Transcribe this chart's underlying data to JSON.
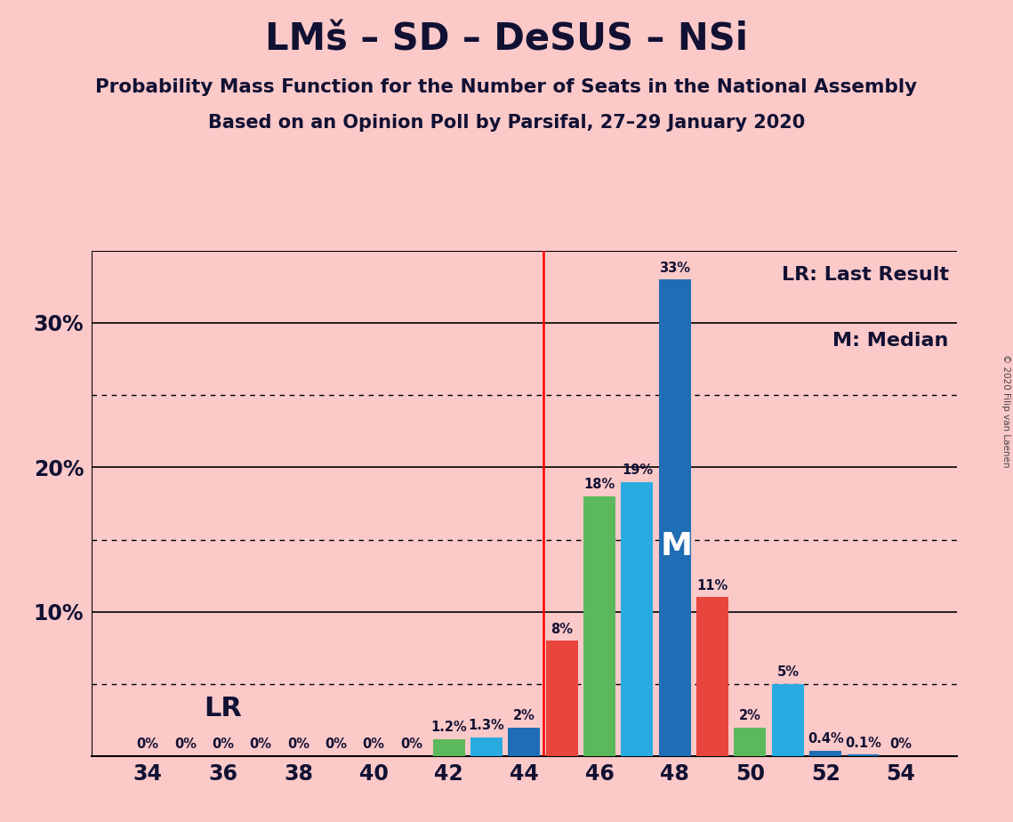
{
  "title": "LMš – SD – DeSUS – NSi",
  "subtitle1": "Probability Mass Function for the Number of Seats in the National Assembly",
  "subtitle2": "Based on an Opinion Poll by Parsifal, 27–29 January 2020",
  "copyright": "© 2020 Filip van Laenen",
  "seats": [
    34,
    35,
    36,
    37,
    38,
    39,
    40,
    41,
    42,
    43,
    44,
    45,
    46,
    47,
    48,
    49,
    50,
    51,
    52,
    53,
    54
  ],
  "probabilities": [
    0.0,
    0.0,
    0.0,
    0.0,
    0.0,
    0.0,
    0.0,
    0.0,
    1.2,
    1.3,
    2.0,
    8.0,
    18.0,
    19.0,
    33.0,
    11.0,
    2.0,
    5.0,
    0.4,
    0.1,
    0.0
  ],
  "bar_colors": [
    "#e8453c",
    "#e8453c",
    "#e8453c",
    "#e8453c",
    "#e8453c",
    "#e8453c",
    "#e8453c",
    "#e8453c",
    "#5cb85c",
    "#29abe2",
    "#1f6db5",
    "#e8453c",
    "#5cb85c",
    "#29abe2",
    "#1f6db5",
    "#e8453c",
    "#5cb85c",
    "#29abe2",
    "#1f6db5",
    "#1f6db5",
    "#1f6db5"
  ],
  "lr_seat": 45,
  "median_seat": 48,
  "ylim_max": 35,
  "solid_yticks": [
    10,
    20,
    30
  ],
  "dotted_yticks": [
    5,
    15,
    25
  ],
  "background_color": "#fcc9c9",
  "text_color": "#111133",
  "legend_lr": "LR: Last Result",
  "legend_m": "M: Median",
  "lr_label": "LR",
  "median_label": "M",
  "bar_label_threshold": 0.05,
  "zero_label_seats": [
    34,
    35,
    36,
    37,
    38,
    39,
    40,
    41,
    54
  ]
}
